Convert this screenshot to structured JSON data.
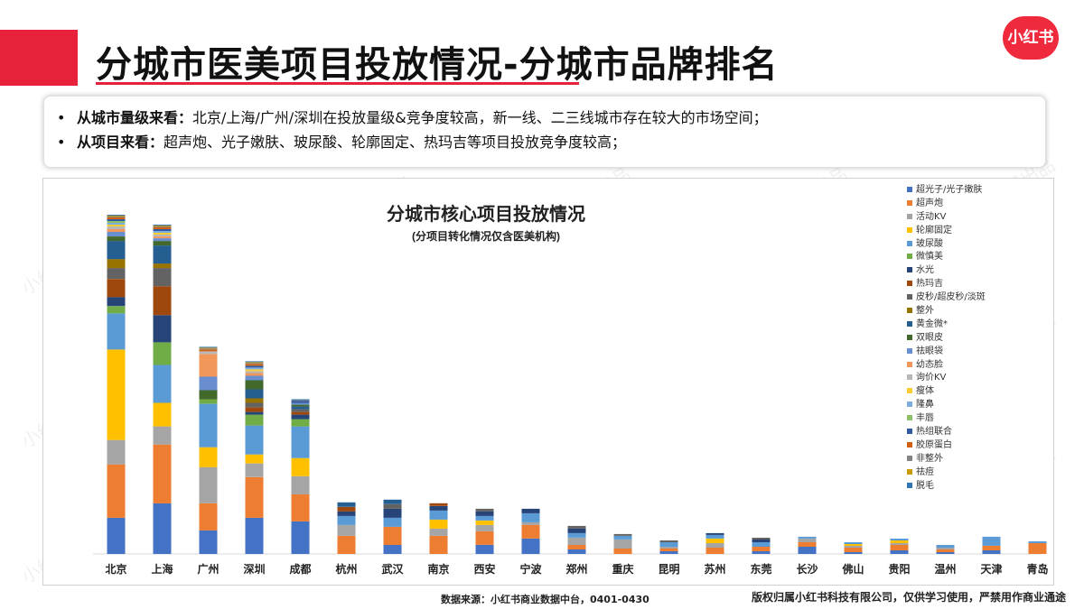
{
  "header": {
    "title": "分城市医美项目投放情况-分城市品牌排名",
    "logo": "小红书"
  },
  "summary": {
    "bullet": "•",
    "lines": [
      {
        "key": "从城市量级来看：",
        "text": "北京/上海/广州/深圳在投放量级&竞争度较高，新一线、二三线城市存在较大的市场空间；"
      },
      {
        "key": "从项目来看：",
        "text": "超声炮、光子嫩肤、玻尿酸、轮廓固定、热玛吉等项目投放竞争度较高；"
      }
    ]
  },
  "footer": {
    "source": "数据来源：小红书商业数据中台，0401-0430",
    "copyright": "版权归属小红书科技有限公司，仅供学习使用，严禁用作商业通途"
  },
  "watermark_text": "小红书商业学习发展出品",
  "chart_data": {
    "type": "bar",
    "stacked": true,
    "title": "分城市核心项目投放情况",
    "subtitle": "(分项目转化情况仅含医美机构)",
    "legend_position": "top-right",
    "grid": false,
    "categories": [
      "北京",
      "上海",
      "广州",
      "深圳",
      "成都",
      "杭州",
      "武汉",
      "南京",
      "西安",
      "宁波",
      "郑州",
      "重庆",
      "昆明",
      "苏州",
      "东莞",
      "长沙",
      "佛山",
      "贵阳",
      "温州",
      "天津",
      "青岛"
    ],
    "ylim": [
      0,
      370
    ],
    "series": [
      {
        "name": "超光子/光子嫩肤",
        "color": "#4472c4",
        "values": [
          40,
          56,
          26,
          40,
          36,
          0,
          10,
          0,
          10,
          17,
          5,
          0,
          3,
          0,
          3,
          8,
          2,
          4,
          2,
          4,
          0
        ]
      },
      {
        "name": "超声炮",
        "color": "#ed7d31",
        "values": [
          59,
          65,
          30,
          45,
          30,
          20,
          20,
          20,
          15,
          15,
          5,
          6,
          3,
          7,
          5,
          5,
          5,
          6,
          3,
          5,
          12
        ]
      },
      {
        "name": "活动KV",
        "color": "#a5a5a5",
        "values": [
          27,
          20,
          40,
          15,
          20,
          12,
          0,
          8,
          7,
          3,
          8,
          10,
          2,
          5,
          0,
          4,
          2,
          2,
          2,
          0,
          0
        ]
      },
      {
        "name": "轮廓固定",
        "color": "#ffc000",
        "values": [
          100,
          26,
          22,
          10,
          20,
          0,
          0,
          10,
          5,
          0,
          0,
          0,
          0,
          5,
          0,
          0,
          2,
          3,
          0,
          0,
          0
        ]
      },
      {
        "name": "玻尿酸",
        "color": "#5b9bd5",
        "values": [
          40,
          42,
          48,
          32,
          35,
          10,
          10,
          10,
          5,
          10,
          5,
          4,
          5,
          4,
          5,
          2,
          2,
          2,
          3,
          10,
          2
        ]
      },
      {
        "name": "微慎美",
        "color": "#70ad47",
        "values": [
          8,
          25,
          5,
          12,
          8,
          0,
          0,
          0,
          0,
          0,
          0,
          0,
          0,
          0,
          0,
          0,
          0,
          0,
          0,
          0,
          0
        ]
      },
      {
        "name": "水光",
        "color": "#264478",
        "values": [
          10,
          30,
          0,
          3,
          5,
          5,
          10,
          5,
          5,
          5,
          5,
          0,
          0,
          2,
          3,
          0,
          0,
          0,
          0,
          0,
          0
        ]
      },
      {
        "name": "热玛吉",
        "color": "#9e480e",
        "values": [
          20,
          32,
          0,
          5,
          3,
          5,
          0,
          3,
          0,
          0,
          0,
          0,
          0,
          0,
          0,
          0,
          0,
          0,
          0,
          0,
          0
        ]
      },
      {
        "name": "皮秒/超皮秒/淡斑",
        "color": "#636363",
        "values": [
          12,
          20,
          0,
          5,
          3,
          0,
          5,
          0,
          3,
          0,
          3,
          2,
          2,
          0,
          2,
          0,
          0,
          0,
          0,
          0,
          0
        ]
      },
      {
        "name": "整外",
        "color": "#997300",
        "values": [
          10,
          5,
          0,
          5,
          0,
          0,
          0,
          0,
          0,
          0,
          0,
          0,
          0,
          0,
          0,
          0,
          0,
          0,
          0,
          0,
          0
        ]
      },
      {
        "name": "黄金微*",
        "color": "#255e91",
        "values": [
          20,
          20,
          0,
          10,
          3,
          5,
          5,
          0,
          0,
          0,
          0,
          0,
          0,
          0,
          0,
          0,
          0,
          0,
          0,
          0,
          0
        ]
      },
      {
        "name": "双眼皮",
        "color": "#43682b",
        "values": [
          5,
          5,
          10,
          10,
          2,
          0,
          0,
          0,
          0,
          0,
          0,
          0,
          0,
          0,
          0,
          0,
          0,
          0,
          0,
          0,
          0
        ]
      },
      {
        "name": "祛眼袋",
        "color": "#698ed0",
        "values": [
          5,
          3,
          15,
          5,
          2,
          0,
          0,
          0,
          0,
          0,
          0,
          0,
          0,
          0,
          0,
          0,
          0,
          0,
          0,
          0,
          0
        ]
      },
      {
        "name": "幼态脸",
        "color": "#f1975a",
        "values": [
          3,
          2,
          25,
          3,
          0,
          0,
          0,
          0,
          0,
          0,
          0,
          0,
          0,
          0,
          0,
          0,
          0,
          0,
          0,
          0,
          0
        ]
      },
      {
        "name": "询价KV",
        "color": "#b7b7b7",
        "values": [
          3,
          2,
          3,
          2,
          0,
          0,
          0,
          0,
          0,
          0,
          0,
          0,
          0,
          0,
          0,
          0,
          0,
          0,
          0,
          0,
          0
        ]
      },
      {
        "name": "瘦体",
        "color": "#ffcd33",
        "values": [
          2,
          2,
          0,
          2,
          0,
          0,
          0,
          0,
          0,
          0,
          0,
          0,
          0,
          0,
          0,
          0,
          0,
          0,
          0,
          0,
          0
        ]
      },
      {
        "name": "隆鼻",
        "color": "#7cafdd",
        "values": [
          2,
          2,
          0,
          2,
          0,
          0,
          0,
          0,
          0,
          0,
          0,
          0,
          0,
          0,
          0,
          0,
          0,
          0,
          0,
          0,
          0
        ]
      },
      {
        "name": "丰唇",
        "color": "#8cc168",
        "values": [
          2,
          0,
          0,
          0,
          0,
          0,
          0,
          0,
          0,
          0,
          0,
          0,
          0,
          0,
          0,
          0,
          0,
          0,
          0,
          0,
          0
        ]
      },
      {
        "name": "热组联合",
        "color": "#335aa1",
        "values": [
          2,
          2,
          0,
          2,
          2,
          0,
          0,
          0,
          0,
          0,
          0,
          0,
          0,
          0,
          0,
          0,
          0,
          0,
          0,
          0,
          0
        ]
      },
      {
        "name": "胶原蛋白",
        "color": "#d26012",
        "values": [
          2,
          2,
          2,
          2,
          0,
          0,
          0,
          0,
          0,
          0,
          0,
          0,
          0,
          0,
          0,
          0,
          0,
          0,
          0,
          0,
          0
        ]
      },
      {
        "name": "非整外",
        "color": "#848484",
        "values": [
          1,
          1,
          1,
          1,
          1,
          0,
          0,
          0,
          0,
          0,
          0,
          0,
          0,
          0,
          0,
          0,
          0,
          0,
          0,
          0,
          0
        ]
      },
      {
        "name": "祛痘",
        "color": "#cc9a06",
        "values": [
          1,
          1,
          1,
          1,
          0,
          0,
          0,
          0,
          0,
          0,
          0,
          0,
          0,
          0,
          0,
          0,
          0,
          0,
          0,
          0,
          0
        ]
      },
      {
        "name": "脱毛",
        "color": "#2e75b6",
        "values": [
          1,
          1,
          1,
          1,
          1,
          0,
          0,
          0,
          0,
          0,
          0,
          0,
          0,
          0,
          0,
          0,
          0,
          0,
          0,
          0,
          0
        ]
      }
    ]
  }
}
